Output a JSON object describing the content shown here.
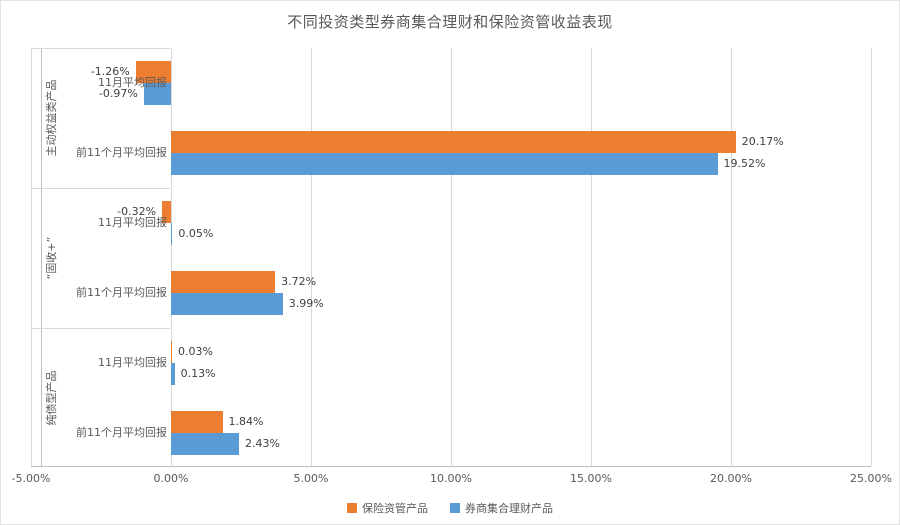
{
  "chart_data": {
    "type": "bar",
    "orientation": "horizontal",
    "title": "不同投资类型券商集合理财和保险资管收益表现",
    "xlabel": "",
    "ylabel": "",
    "xlim": [
      -5,
      25
    ],
    "grid": true,
    "legend_position": "bottom",
    "series": [
      {
        "name": "保险资管产品",
        "color": "#ED7D31"
      },
      {
        "name": "券商集合理财产品",
        "color": "#5B9BD5"
      }
    ],
    "x_ticks": [
      {
        "label": "-5.00%",
        "value": -5
      },
      {
        "label": "0.00%",
        "value": 0
      },
      {
        "label": "5.00%",
        "value": 5
      },
      {
        "label": "10.00%",
        "value": 10
      },
      {
        "label": "15.00%",
        "value": 15
      },
      {
        "label": "20.00%",
        "value": 20
      },
      {
        "label": "25.00%",
        "value": 25
      }
    ],
    "groups": [
      {
        "label": "主动权益类产品",
        "rows": [
          {
            "label": "11月平均回报",
            "values": [
              {
                "series": "保险资管产品",
                "pct": -1.26,
                "text": "-1.26%"
              },
              {
                "series": "券商集合理财产品",
                "pct": -0.97,
                "text": "-0.97%"
              }
            ]
          },
          {
            "label": "前11个月平均回报",
            "values": [
              {
                "series": "保险资管产品",
                "pct": 20.17,
                "text": "20.17%"
              },
              {
                "series": "券商集合理财产品",
                "pct": 19.52,
                "text": "19.52%"
              }
            ]
          }
        ]
      },
      {
        "label": "“固收+”",
        "rows": [
          {
            "label": "11月平均回报",
            "values": [
              {
                "series": "保险资管产品",
                "pct": -0.32,
                "text": "-0.32%"
              },
              {
                "series": "券商集合理财产品",
                "pct": 0.05,
                "text": "0.05%"
              }
            ]
          },
          {
            "label": "前11个月平均回报",
            "values": [
              {
                "series": "保险资管产品",
                "pct": 3.72,
                "text": "3.72%"
              },
              {
                "series": "券商集合理财产品",
                "pct": 3.99,
                "text": "3.99%"
              }
            ]
          }
        ]
      },
      {
        "label": "纯债型产品",
        "rows": [
          {
            "label": "11月平均回报",
            "values": [
              {
                "series": "保险资管产品",
                "pct": 0.03,
                "text": "0.03%"
              },
              {
                "series": "券商集合理财产品",
                "pct": 0.13,
                "text": "0.13%"
              }
            ]
          },
          {
            "label": "前11个月平均回报",
            "values": [
              {
                "series": "保险资管产品",
                "pct": 1.84,
                "text": "1.84%"
              },
              {
                "series": "券商集合理财产品",
                "pct": 2.43,
                "text": "2.43%"
              }
            ]
          }
        ]
      }
    ]
  }
}
